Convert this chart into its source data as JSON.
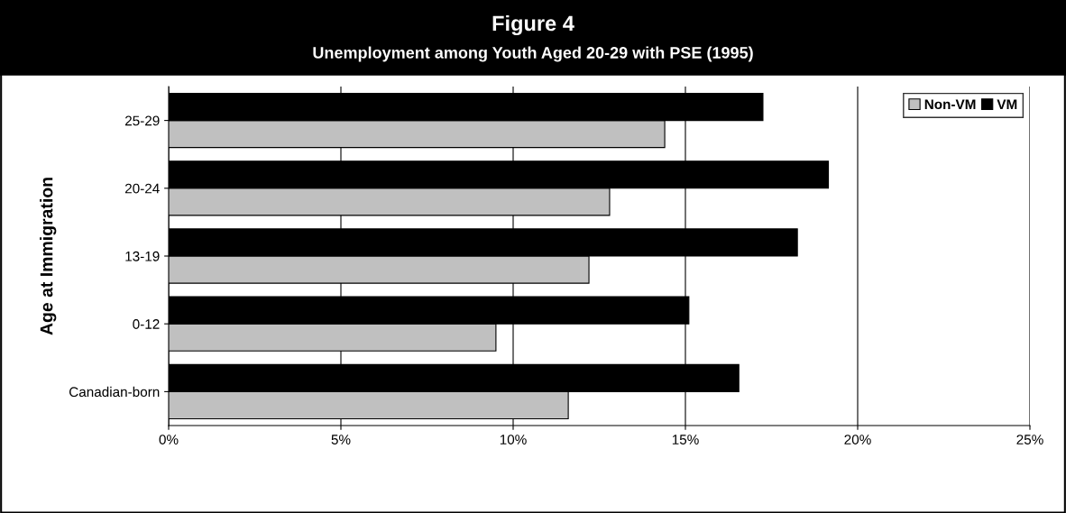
{
  "chart_data": {
    "type": "bar",
    "orientation": "horizontal",
    "title": "Figure 4",
    "subtitle": "Unemployment among Youth Aged 20-29 with PSE (1995)",
    "ylabel": "Age at Immigration",
    "categories": [
      "25-29",
      "20-24",
      "13-19",
      "0-12",
      "Canadian-born"
    ],
    "series": [
      {
        "name": "Non-VM",
        "color": "#c0c0c0",
        "values": [
          14.4,
          12.8,
          12.2,
          9.5,
          11.6
        ]
      },
      {
        "name": "VM",
        "color": "#000000",
        "values": [
          17.25,
          19.15,
          18.25,
          15.1,
          16.55
        ]
      }
    ],
    "xlim": [
      0,
      25
    ],
    "xticks": [
      {
        "value": 0,
        "label": "0%"
      },
      {
        "value": 5,
        "label": "5%"
      },
      {
        "value": 10,
        "label": "10%"
      },
      {
        "value": 15,
        "label": "15%"
      },
      {
        "value": 20,
        "label": "20%"
      },
      {
        "value": 25,
        "label": "25%"
      }
    ],
    "grid": "x",
    "legend": "top right"
  }
}
